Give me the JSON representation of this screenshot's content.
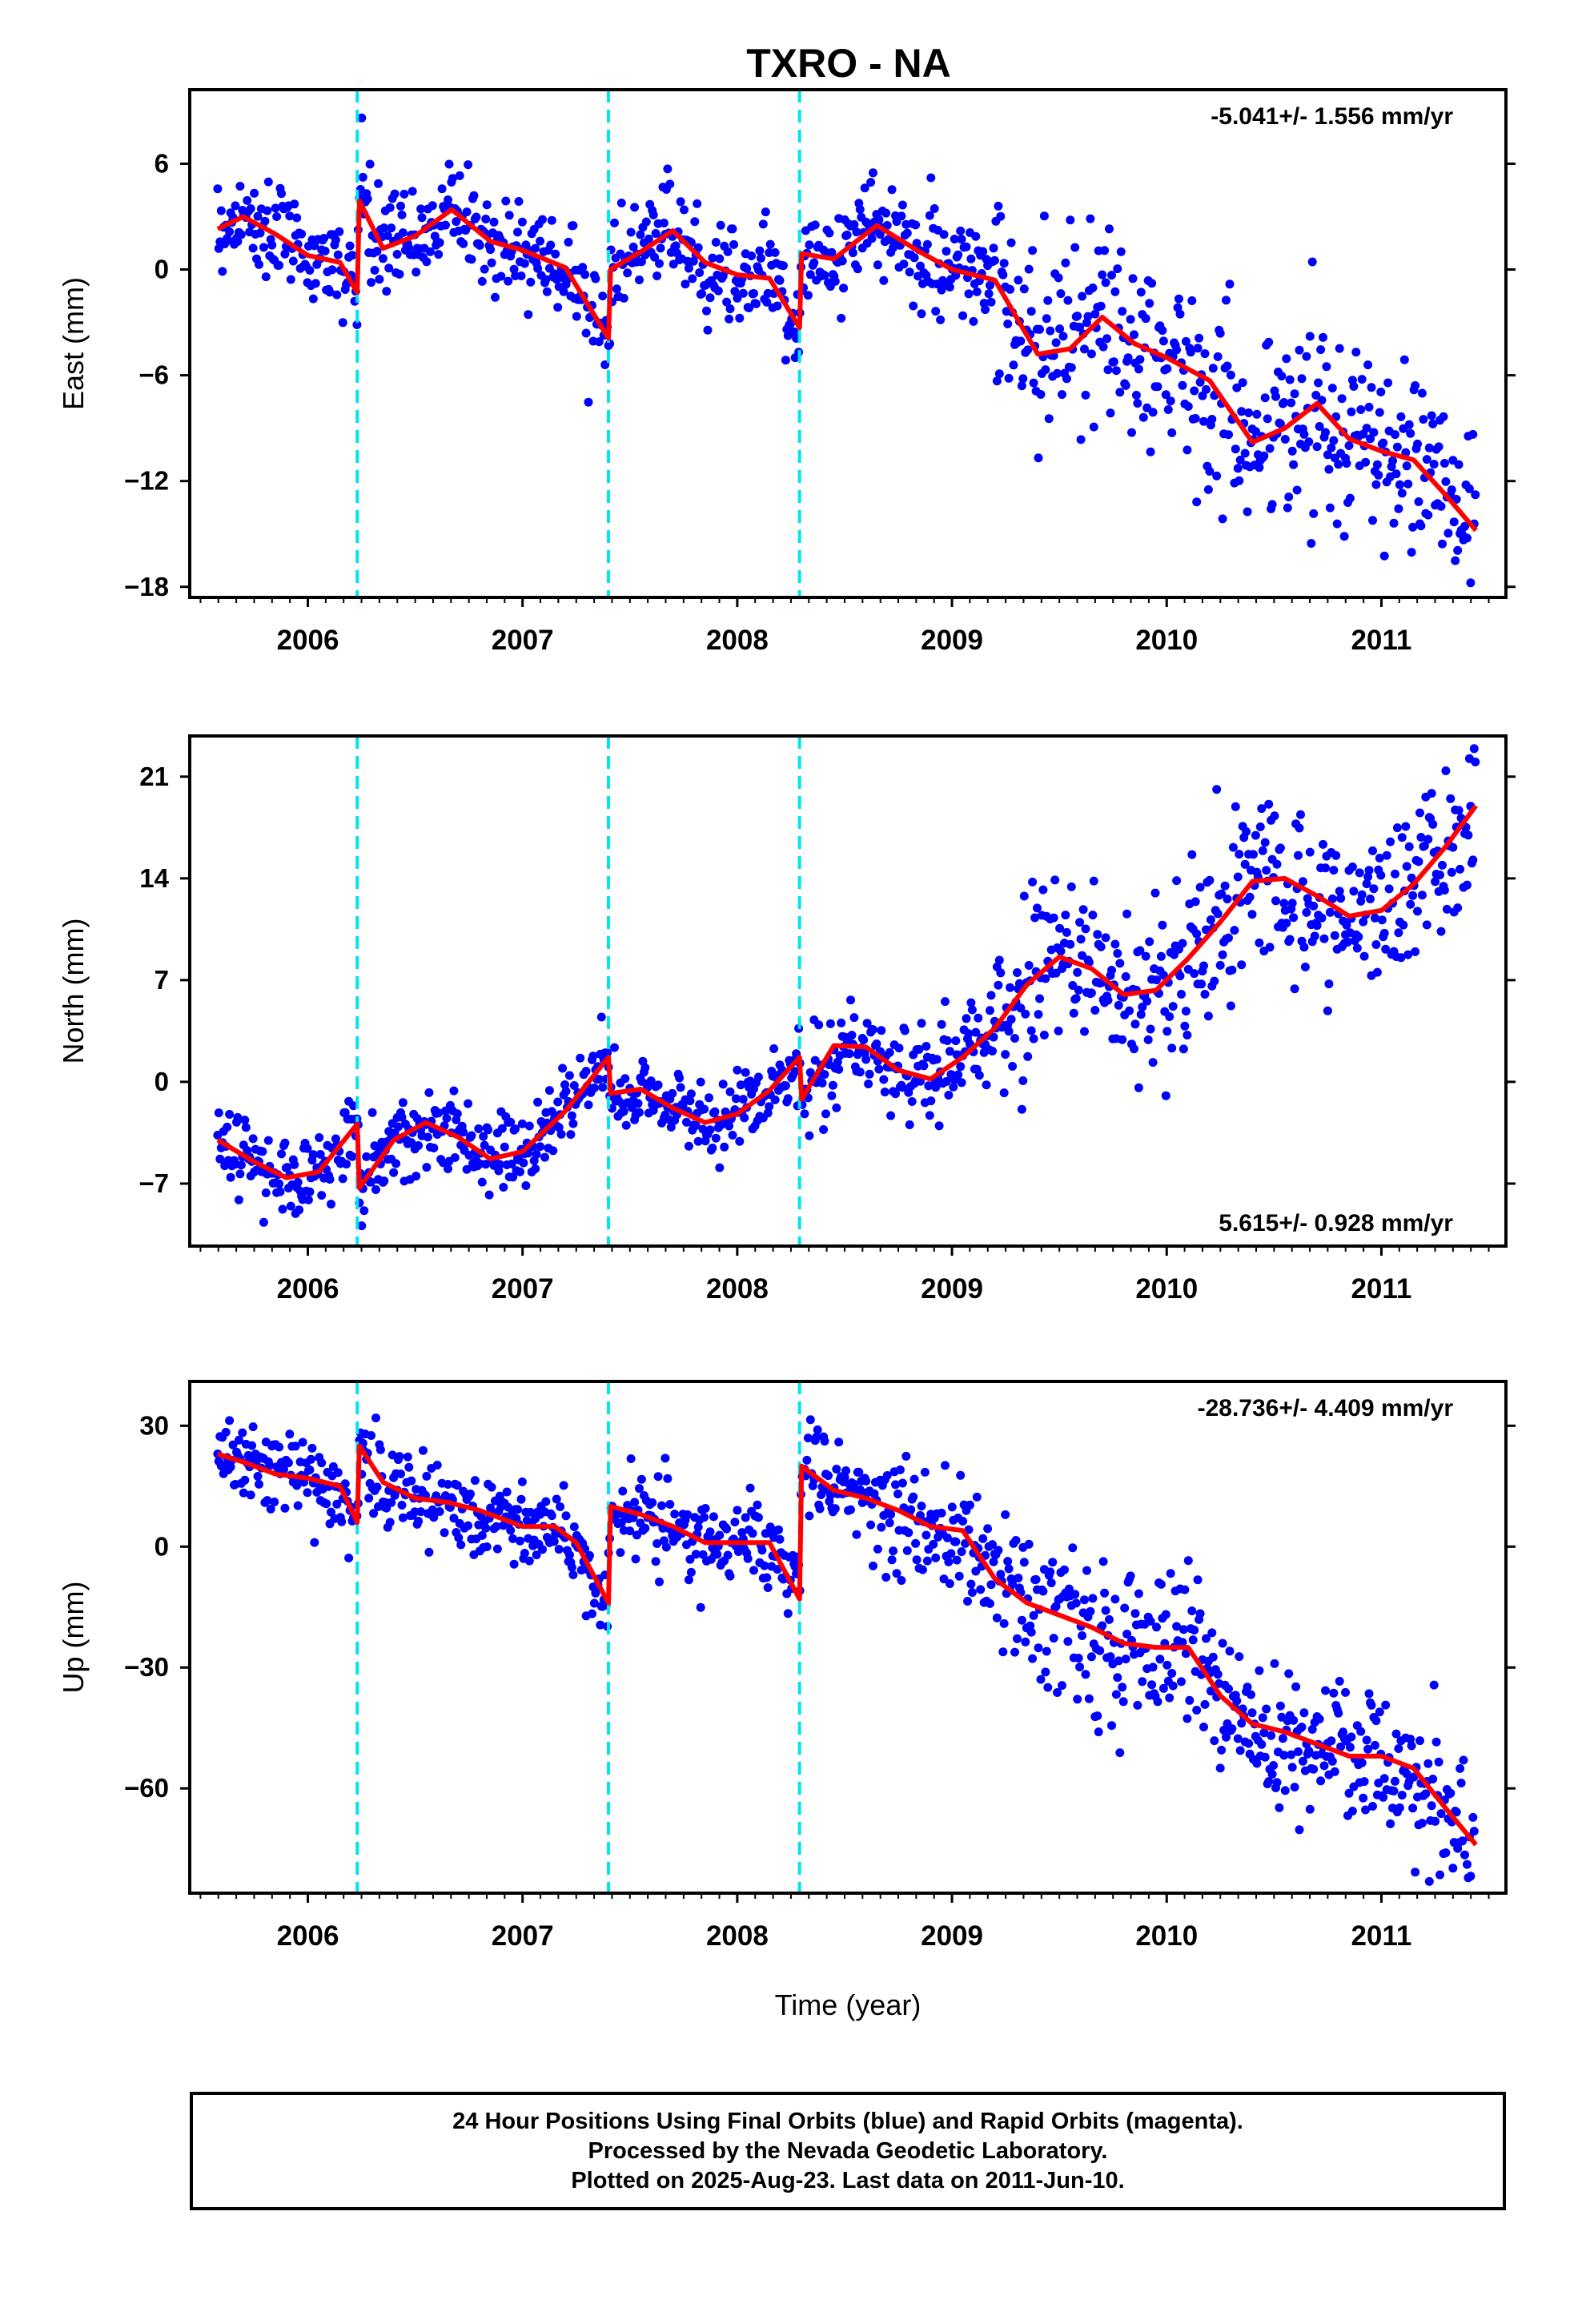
{
  "colors": {
    "points": "#0000ff",
    "fit_line": "#ff0000",
    "events": "#00e5ee",
    "axis": "#000000",
    "background": "#ffffff"
  },
  "chart_data": {
    "type": "scatter",
    "title": "TXRO - NA",
    "xlabel": "Time (year)",
    "xlim": [
      2005.45,
      2011.58
    ],
    "x_ticks": [
      2006,
      2007,
      2008,
      2009,
      2010,
      2011
    ],
    "x_tick_labels": [
      "2006",
      "2007",
      "2008",
      "2009",
      "2010",
      "2011"
    ],
    "event_lines_x": [
      2006.23,
      2007.4,
      2008.29
    ],
    "data_start": 2005.58,
    "data_end": 2011.44,
    "grid": false,
    "panels": [
      {
        "id": "east",
        "ylabel": "East (mm)",
        "ylim": [
          -18.6,
          10.2
        ],
        "y_ticks": [
          6,
          0,
          -6,
          -12,
          -18
        ],
        "y_tick_labels": [
          "6",
          "0",
          "−6",
          "−12",
          "−18"
        ],
        "rate_label": "-5.041+/- 1.556 mm/yr",
        "rate_position": "top-right",
        "fit_series": {
          "name": "",
          "x": [
            2005.58,
            2005.7,
            2005.85,
            2006.0,
            2006.15,
            2006.23,
            2006.24,
            2006.35,
            2006.5,
            2006.67,
            2006.85,
            2007.0,
            2007.2,
            2007.4,
            2007.41,
            2007.55,
            2007.7,
            2007.85,
            2008.0,
            2008.15,
            2008.29,
            2008.3,
            2008.45,
            2008.65,
            2008.85,
            2009.0,
            2009.2,
            2009.4,
            2009.55,
            2009.7,
            2009.85,
            2010.0,
            2010.2,
            2010.4,
            2010.55,
            2010.7,
            2010.85,
            2011.0,
            2011.15,
            2011.3,
            2011.44
          ],
          "y": [
            2.3,
            3.0,
            2.0,
            0.8,
            0.4,
            -1.3,
            3.9,
            1.2,
            1.9,
            3.4,
            1.6,
            1.1,
            0.1,
            -3.9,
            0.0,
            1.0,
            2.2,
            0.4,
            -0.3,
            -0.5,
            -3.3,
            0.9,
            0.6,
            2.5,
            1.0,
            0.0,
            -0.6,
            -4.8,
            -4.5,
            -2.7,
            -4.2,
            -5.0,
            -6.3,
            -9.8,
            -9.0,
            -7.6,
            -9.6,
            -10.3,
            -10.8,
            -12.8,
            -14.8
          ]
        },
        "scatter_model": {
          "noise_sd_mm": [
            1.4,
            1.4,
            1.4,
            1.5,
            2.6,
            2.6
          ],
          "noise_change_years": [
            2006.2,
            2008.3,
            2009.2,
            2009.8
          ]
        }
      },
      {
        "id": "north",
        "ylabel": "North (mm)",
        "ylim": [
          -11.3,
          23.8
        ],
        "y_ticks": [
          21,
          14,
          7,
          0,
          -7
        ],
        "y_tick_labels": [
          "21",
          "14",
          "7",
          "0",
          "−7"
        ],
        "rate_label": "5.615+/- 0.928 mm/yr",
        "rate_position": "bottom-right",
        "fit_series": {
          "name": "",
          "x": [
            2005.58,
            2005.75,
            2005.9,
            2006.05,
            2006.23,
            2006.24,
            2006.4,
            2006.55,
            2006.7,
            2006.85,
            2007.0,
            2007.2,
            2007.4,
            2007.41,
            2007.55,
            2007.7,
            2007.85,
            2008.0,
            2008.15,
            2008.29,
            2008.3,
            2008.45,
            2008.6,
            2008.75,
            2008.9,
            2009.05,
            2009.2,
            2009.35,
            2009.5,
            2009.65,
            2009.8,
            2009.95,
            2010.1,
            2010.25,
            2010.4,
            2010.55,
            2010.7,
            2010.85,
            2011.0,
            2011.15,
            2011.3,
            2011.44
          ],
          "y": [
            -4.0,
            -5.5,
            -6.6,
            -6.2,
            -2.9,
            -7.3,
            -4.0,
            -2.8,
            -3.8,
            -5.3,
            -4.8,
            -2.0,
            1.7,
            -0.8,
            -0.5,
            -1.8,
            -2.8,
            -2.2,
            -0.6,
            1.7,
            -1.2,
            2.5,
            2.4,
            0.8,
            0.2,
            1.7,
            3.7,
            6.7,
            8.6,
            7.8,
            6.0,
            6.3,
            8.5,
            11.0,
            13.8,
            14.0,
            12.8,
            11.4,
            11.8,
            13.6,
            16.2,
            19.0
          ]
        },
        "scatter_model": {
          "noise_sd_mm": [
            1.4,
            1.4,
            1.4,
            1.6,
            2.8,
            2.8
          ],
          "noise_change_years": [
            2006.2,
            2008.3,
            2009.2,
            2009.75
          ]
        }
      },
      {
        "id": "up",
        "ylabel": "Up (mm)",
        "ylim": [
          -86,
          41
        ],
        "y_ticks": [
          30,
          0,
          -30,
          -60
        ],
        "y_tick_labels": [
          "30",
          "0",
          "−30",
          "−60"
        ],
        "rate_label": "-28.736+/- 4.409 mm/yr",
        "rate_position": "top-right",
        "fit_series": {
          "name": "",
          "x": [
            2005.58,
            2005.7,
            2005.85,
            2006.0,
            2006.15,
            2006.23,
            2006.24,
            2006.35,
            2006.5,
            2006.65,
            2006.8,
            2007.0,
            2007.15,
            2007.25,
            2007.4,
            2007.41,
            2007.55,
            2007.7,
            2007.85,
            2008.0,
            2008.15,
            2008.29,
            2008.3,
            2008.45,
            2008.6,
            2008.75,
            2008.9,
            2009.05,
            2009.2,
            2009.35,
            2009.5,
            2009.65,
            2009.8,
            2009.95,
            2010.1,
            2010.25,
            2010.4,
            2010.55,
            2010.7,
            2010.85,
            2011.0,
            2011.15,
            2011.3,
            2011.44
          ],
          "y": [
            23,
            21,
            18,
            17,
            15,
            6,
            25,
            16,
            12,
            11,
            9,
            5,
            5,
            1,
            -14,
            10,
            8,
            5,
            1,
            1,
            1,
            -13,
            20,
            14,
            12,
            9,
            5,
            4,
            -8,
            -14,
            -17,
            -20,
            -24,
            -25,
            -25,
            -37,
            -44,
            -46,
            -49,
            -52,
            -52,
            -55,
            -65,
            -74
          ]
        },
        "scatter_model": {
          "noise_sd_mm": [
            5.5,
            5.5,
            5.5,
            6.5,
            10.0,
            10.0
          ],
          "noise_change_years": [
            2006.2,
            2008.3,
            2009.2,
            2009.8
          ]
        }
      }
    ]
  },
  "caption": {
    "line1": "24 Hour Positions Using Final Orbits (blue) and Rapid Orbits (magenta).",
    "line2": "Processed by the Nevada Geodetic Laboratory.",
    "line3": "Plotted on 2025-Aug-23. Last data on 2011-Jun-10."
  }
}
